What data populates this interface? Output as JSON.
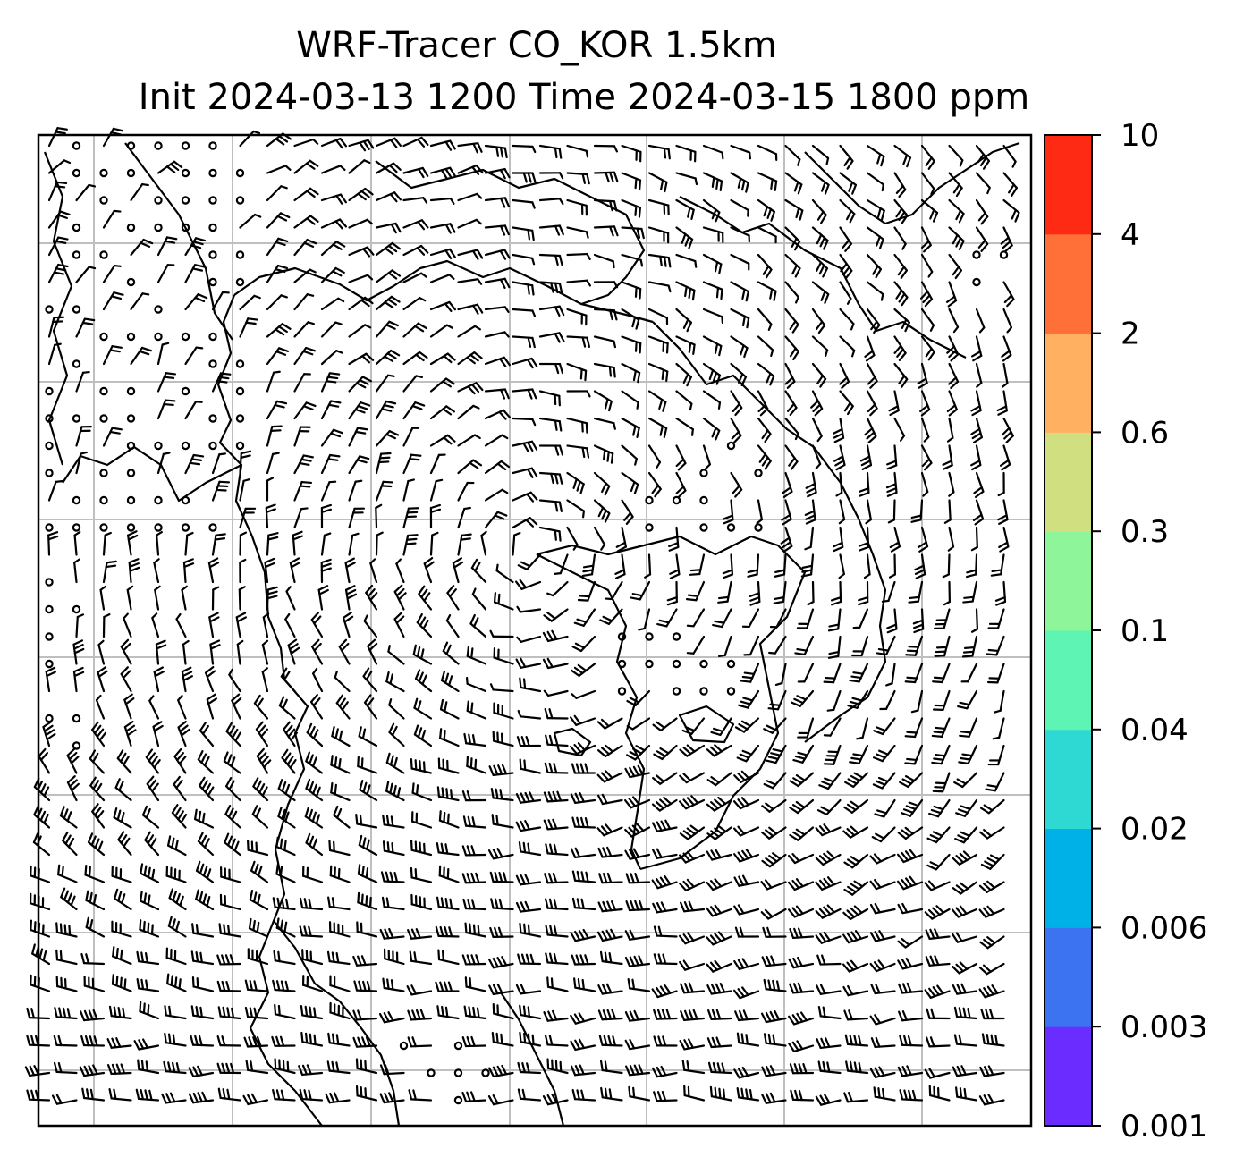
{
  "title": {
    "line1": "WRF-Tracer CO_KOR 1.5km",
    "line2": "Init 2024-03-13 1200 Time 2024-03-15 1800 ppm"
  },
  "colorbar": {
    "levels": [
      "0.001",
      "0.003",
      "0.006",
      "0.02",
      "0.04",
      "0.1",
      "0.3",
      "0.6",
      "2",
      "4",
      "10"
    ],
    "colors": [
      "#6a2cff",
      "#3b73f0",
      "#00b1e8",
      "#2ed8d3",
      "#5ef5b4",
      "#8ff59a",
      "#d0e080",
      "#ffb060",
      "#ff7038",
      "#ff2a14"
    ]
  },
  "map": {
    "grid_color": "#bfbfbf",
    "wind_barb_color": "#000000",
    "coastline_color": "#000000"
  }
}
